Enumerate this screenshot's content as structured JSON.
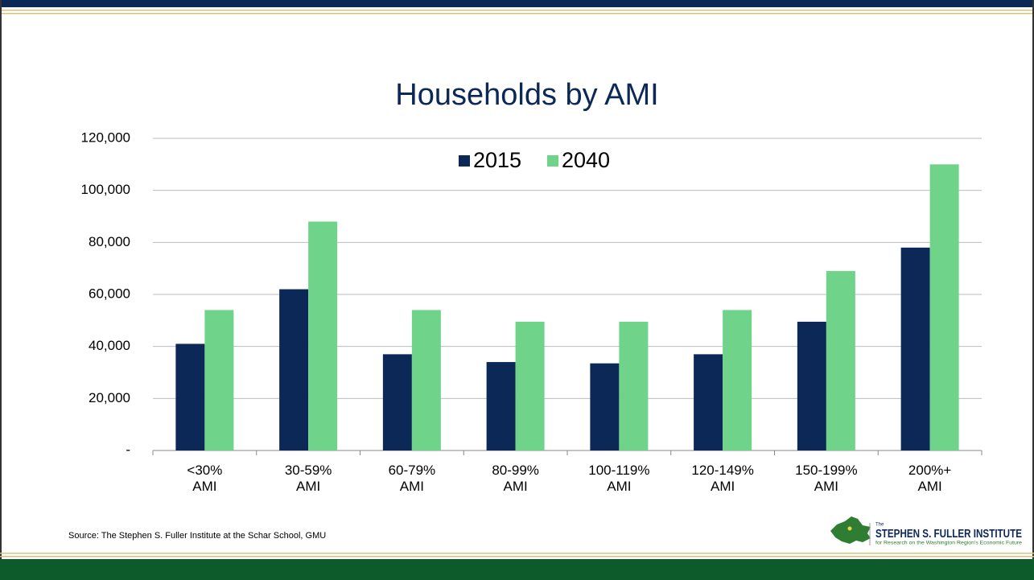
{
  "chart_data": {
    "type": "bar",
    "title": "Households by AMI",
    "categories": [
      "<30%\nAMI",
      "30-59%\nAMI",
      "60-79%\nAMI",
      "80-99%\nAMI",
      "100-119%\nAMI",
      "120-149%\nAMI",
      "150-199%\nAMI",
      "200%+\nAMI"
    ],
    "series": [
      {
        "name": "2015",
        "color": "#0b2856",
        "values": [
          41000,
          62000,
          37000,
          34000,
          33500,
          37000,
          49500,
          78000
        ]
      },
      {
        "name": "2040",
        "color": "#6fd48a",
        "values": [
          54000,
          88000,
          54000,
          49500,
          49500,
          54000,
          69000,
          110000
        ]
      }
    ],
    "ylim": [
      0,
      120000
    ],
    "yticks": [
      {
        "value": 0,
        "label": "-"
      },
      {
        "value": 20000,
        "label": "20,000"
      },
      {
        "value": 40000,
        "label": "40,000"
      },
      {
        "value": 60000,
        "label": "60,000"
      },
      {
        "value": 80000,
        "label": "80,000"
      },
      {
        "value": 100000,
        "label": "100,000"
      },
      {
        "value": 120000,
        "label": "120,000"
      }
    ],
    "grid": true,
    "legend": "top"
  },
  "source": "Source: The Stephen S. Fuller Institute at the Schar School, GMU",
  "logo": {
    "pre": "The",
    "name": "STEPHEN S. FULLER INSTITUTE",
    "tagline": "for Research on the Washington Region's Economic Future"
  }
}
